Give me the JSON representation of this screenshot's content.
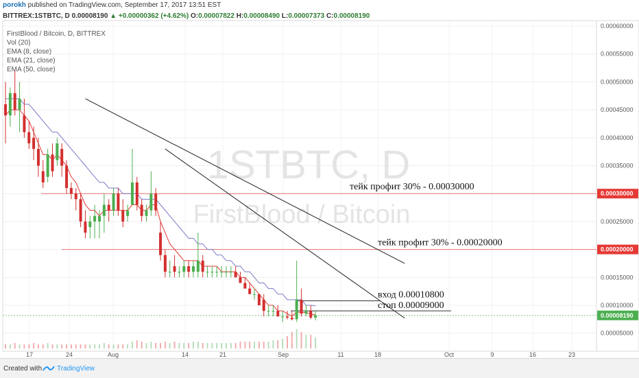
{
  "header": {
    "author": "porokh",
    "published_text": "published on TradingView.com, September 17, 2017 13:51 EST",
    "symbol": "BITTREX:1STBTC, D",
    "last": "0.00008190",
    "change": "▲ +0.00000362 (+4.62%)",
    "o_label": "O:",
    "o_value": "0.00007822",
    "h_label": "H:",
    "h_value": "0.00008490",
    "l_label": "L:",
    "l_value": "0.00007373",
    "c_label": "C:",
    "c_value": "0.00008190"
  },
  "legend": [
    "FirstBlood / Bitcoin, D, BITTREX",
    "Vol (20)",
    "EMA (8, close)",
    "EMA (21, close)",
    "EMA (50, close)"
  ],
  "watermark": {
    "line1": "1STBTC, D",
    "line2": "FirstBlood / Bitcoin"
  },
  "footer": {
    "created_with": "Created with",
    "brand": "TradingView"
  },
  "colors": {
    "up": "#4caf50",
    "down": "#d32f2f",
    "ema8": "#e53935",
    "ema21": "#7a7ac9",
    "ema50": "#8888aa",
    "hline": "#e57373",
    "priceline": "#81c784",
    "label_bg": "#e53935",
    "price_label_bg": "#4caf50"
  },
  "chart_data": {
    "type": "candlestick",
    "x_tick_labels": [
      "17",
      "24",
      "Aug",
      "14",
      "21",
      "Sep",
      "11",
      "18",
      "Oct",
      "9",
      "16",
      "23"
    ],
    "y_tick_labels": [
      "0.00060000",
      "0.00055000",
      "0.00050000",
      "0.00045000",
      "0.00040000",
      "0.00035000",
      "0.00030000",
      "0.00025000",
      "0.00020000",
      "0.00015000",
      "0.00010000",
      "0.00005000"
    ],
    "ylim": [
      3e-05,
      0.0006
    ],
    "current_price": "0.00008190",
    "candles": [
      {
        "o": 0.00046,
        "h": 0.0005,
        "l": 0.00039,
        "c": 0.00044
      },
      {
        "o": 0.00044,
        "h": 0.00049,
        "l": 0.00042,
        "c": 0.00048
      },
      {
        "o": 0.00048,
        "h": 0.00052,
        "l": 0.00044,
        "c": 0.00045
      },
      {
        "o": 0.00045,
        "h": 0.0005,
        "l": 0.00041,
        "c": 0.00047
      },
      {
        "o": 0.00044,
        "h": 0.00047,
        "l": 0.0004,
        "c": 0.00041
      },
      {
        "o": 0.00041,
        "h": 0.00043,
        "l": 0.00038,
        "c": 0.00039
      },
      {
        "o": 0.0004,
        "h": 0.00042,
        "l": 0.00036,
        "c": 0.00038
      },
      {
        "o": 0.00038,
        "h": 0.0004,
        "l": 0.00033,
        "c": 0.00035
      },
      {
        "o": 0.00034,
        "h": 0.00036,
        "l": 0.00031,
        "c": 0.00032
      },
      {
        "o": 0.00033,
        "h": 0.00038,
        "l": 0.00032,
        "c": 0.00037
      },
      {
        "o": 0.00037,
        "h": 0.00039,
        "l": 0.00033,
        "c": 0.00034
      },
      {
        "o": 0.00036,
        "h": 0.0004,
        "l": 0.00035,
        "c": 0.00039
      },
      {
        "o": 0.00038,
        "h": 0.00039,
        "l": 0.00033,
        "c": 0.00035
      },
      {
        "o": 0.00035,
        "h": 0.00036,
        "l": 0.0003,
        "c": 0.00031
      },
      {
        "o": 0.00031,
        "h": 0.00032,
        "l": 0.00029,
        "c": 0.0003
      },
      {
        "o": 0.0003,
        "h": 0.00031,
        "l": 0.00027,
        "c": 0.00029
      },
      {
        "o": 0.00029,
        "h": 0.0003,
        "l": 0.00024,
        "c": 0.00025
      },
      {
        "o": 0.00025,
        "h": 0.00027,
        "l": 0.00022,
        "c": 0.00023
      },
      {
        "o": 0.00024,
        "h": 0.00026,
        "l": 0.00022,
        "c": 0.00025
      },
      {
        "o": 0.00025,
        "h": 0.00028,
        "l": 0.00022,
        "c": 0.00026
      },
      {
        "o": 0.00025,
        "h": 0.00027,
        "l": 0.00022,
        "c": 0.00026
      },
      {
        "o": 0.00026,
        "h": 0.0003,
        "l": 0.00023,
        "c": 0.00028
      },
      {
        "o": 0.00028,
        "h": 0.00029,
        "l": 0.00025,
        "c": 0.00027
      },
      {
        "o": 0.00027,
        "h": 0.00031,
        "l": 0.00026,
        "c": 0.0003
      },
      {
        "o": 0.0003,
        "h": 0.00031,
        "l": 0.00026,
        "c": 0.00027
      },
      {
        "o": 0.00027,
        "h": 0.00029,
        "l": 0.00024,
        "c": 0.00025
      },
      {
        "o": 0.00026,
        "h": 0.00028,
        "l": 0.00025,
        "c": 0.00027
      },
      {
        "o": 0.00028,
        "h": 0.00038,
        "l": 0.00028,
        "c": 0.00032
      },
      {
        "o": 0.00032,
        "h": 0.00033,
        "l": 0.00027,
        "c": 0.00028
      },
      {
        "o": 0.00028,
        "h": 0.00029,
        "l": 0.00025,
        "c": 0.00026
      },
      {
        "o": 0.00026,
        "h": 0.00028,
        "l": 0.00025,
        "c": 0.00027
      },
      {
        "o": 0.00027,
        "h": 0.00034,
        "l": 0.00026,
        "c": 0.0003
      },
      {
        "o": 0.0003,
        "h": 0.00031,
        "l": 0.00026,
        "c": 0.00027
      },
      {
        "o": 0.00023,
        "h": 0.00025,
        "l": 0.00018,
        "c": 0.00019
      },
      {
        "o": 0.00019,
        "h": 0.0002,
        "l": 0.00015,
        "c": 0.00016
      },
      {
        "o": 0.00016,
        "h": 0.00018,
        "l": 0.00015,
        "c": 0.00016
      },
      {
        "o": 0.00017,
        "h": 0.00019,
        "l": 0.00015,
        "c": 0.00016
      },
      {
        "o": 0.00016,
        "h": 0.00017,
        "l": 0.00015,
        "c": 0.00016
      },
      {
        "o": 0.00016,
        "h": 0.00018,
        "l": 0.00015,
        "c": 0.00017
      },
      {
        "o": 0.00017,
        "h": 0.00018,
        "l": 0.00015,
        "c": 0.00016
      },
      {
        "o": 0.00016,
        "h": 0.00018,
        "l": 0.00015,
        "c": 0.00017
      },
      {
        "o": 0.00016,
        "h": 0.00023,
        "l": 0.00015,
        "c": 0.00018
      },
      {
        "o": 0.00018,
        "h": 0.00019,
        "l": 0.00015,
        "c": 0.00016
      },
      {
        "o": 0.00016,
        "h": 0.00017,
        "l": 0.00015,
        "c": 0.00016
      },
      {
        "o": 0.00016,
        "h": 0.00017,
        "l": 0.00015,
        "c": 0.00016
      },
      {
        "o": 0.00016,
        "h": 0.00017,
        "l": 0.00015,
        "c": 0.00016
      },
      {
        "o": 0.00016,
        "h": 0.00017,
        "l": 0.00015,
        "c": 0.00016
      },
      {
        "o": 0.00016,
        "h": 0.00017,
        "l": 0.00015,
        "c": 0.00016
      },
      {
        "o": 0.00016,
        "h": 0.00017,
        "l": 0.00015,
        "c": 0.00016
      },
      {
        "o": 0.00016,
        "h": 0.00017,
        "l": 0.00015,
        "c": 0.00015
      },
      {
        "o": 0.00015,
        "h": 0.00016,
        "l": 0.00014,
        "c": 0.00014
      },
      {
        "o": 0.00014,
        "h": 0.00015,
        "l": 0.00013,
        "c": 0.00013
      },
      {
        "o": 0.00013,
        "h": 0.00014,
        "l": 0.00012,
        "c": 0.00012
      },
      {
        "o": 0.00012,
        "h": 0.00013,
        "l": 0.00011,
        "c": 0.00012
      },
      {
        "o": 0.00012,
        "h": 0.00012,
        "l": 0.0001,
        "c": 0.0001
      },
      {
        "o": 0.00011,
        "h": 0.00012,
        "l": 8e-05,
        "c": 9e-05
      },
      {
        "o": 9e-05,
        "h": 0.0001,
        "l": 8e-05,
        "c": 9e-05
      },
      {
        "o": 9e-05,
        "h": 0.0001,
        "l": 8e-05,
        "c": 9e-05
      },
      {
        "o": 9e-05,
        "h": 0.0001,
        "l": 8e-05,
        "c": 8e-05
      },
      {
        "o": 8e-05,
        "h": 9e-05,
        "l": 7e-05,
        "c": 8e-05
      },
      {
        "o": 8e-05,
        "h": 9e-05,
        "l": 7.5e-05,
        "c": 7.8e-05
      },
      {
        "o": 7.8e-05,
        "h": 9e-05,
        "l": 7.3e-05,
        "c": 7.5e-05
      },
      {
        "o": 7.5e-05,
        "h": 0.00018,
        "l": 7e-05,
        "c": 0.00011
      },
      {
        "o": 0.00011,
        "h": 0.00013,
        "l": 8e-05,
        "c": 8.5e-05
      },
      {
        "o": 8.5e-05,
        "h": 0.0001,
        "l": 8e-05,
        "c": 9e-05
      },
      {
        "o": 9e-05,
        "h": 0.0001,
        "l": 7.5e-05,
        "c": 7.8e-05
      },
      {
        "o": 7.8e-05,
        "h": 9e-05,
        "l": 7.3e-05,
        "c": 8.2e-05
      }
    ],
    "volume_scale_note": "",
    "volumes": [
      3,
      3,
      4,
      3,
      3,
      3,
      4,
      3,
      3,
      4,
      3,
      3,
      3,
      3,
      3,
      3,
      3,
      3,
      3,
      3,
      3,
      4,
      3,
      3,
      3,
      3,
      3,
      5,
      6,
      5,
      4,
      5,
      4,
      4,
      5,
      4,
      5,
      4,
      4,
      4,
      5,
      5,
      4,
      4,
      4,
      4,
      4,
      4,
      4,
      4,
      5,
      5,
      5,
      5,
      5,
      5,
      5,
      6,
      6,
      7,
      9,
      12,
      14,
      12,
      10,
      10,
      8
    ],
    "ema8": [
      0.00044,
      0.00045,
      0.00045,
      0.00045,
      0.00044,
      0.00043,
      0.00041,
      0.00039,
      0.00037,
      0.00037,
      0.00036,
      0.00037,
      0.00036,
      0.00035,
      0.00033,
      0.00032,
      0.0003,
      0.00028,
      0.00027,
      0.00027,
      0.00026,
      0.00027,
      0.00027,
      0.00027,
      0.00027,
      0.00027,
      0.00027,
      0.00028,
      0.00028,
      0.00027,
      0.00027,
      0.00028,
      0.00028,
      0.00025,
      0.00023,
      0.00021,
      0.0002,
      0.00019,
      0.00018,
      0.00018,
      0.00018,
      0.00018,
      0.00017,
      0.00017,
      0.00017,
      0.00017,
      0.00016,
      0.00016,
      0.00016,
      0.00016,
      0.00015,
      0.00015,
      0.00014,
      0.00013,
      0.00012,
      0.00011,
      0.0001,
      0.0001,
      9e-05,
      9e-05,
      8.5e-05,
      8e-05,
      8.8e-05,
      8.7e-05,
      8.7e-05,
      8.4e-05,
      8.3e-05
    ],
    "ema21": [
      0.00047,
      0.00047,
      0.00047,
      0.00047,
      0.00046,
      0.00046,
      0.00045,
      0.00044,
      0.00043,
      0.00042,
      0.00041,
      0.00041,
      0.0004,
      0.00039,
      0.00038,
      0.00037,
      0.00036,
      0.00035,
      0.00034,
      0.00033,
      0.00032,
      0.00032,
      0.00031,
      0.00031,
      0.00031,
      0.0003,
      0.0003,
      0.0003,
      0.0003,
      0.00029,
      0.00029,
      0.00029,
      0.00029,
      0.00028,
      0.00027,
      0.00026,
      0.00025,
      0.00024,
      0.00023,
      0.00022,
      0.00022,
      0.00021,
      0.00021,
      0.0002,
      0.0002,
      0.00019,
      0.00019,
      0.00018,
      0.00018,
      0.00017,
      0.00017,
      0.00016,
      0.00016,
      0.00015,
      0.00014,
      0.00014,
      0.00013,
      0.00013,
      0.00012,
      0.00012,
      0.00011,
      0.00011,
      0.00011,
      0.00011,
      0.0001,
      0.0001,
      9.9e-05
    ],
    "trendlines": [
      {
        "x1": 17,
        "y1": 0.00047,
        "x2": 85,
        "y2": 0.000175
      },
      {
        "x1": 34,
        "y1": 0.00038,
        "x2": 85,
        "y2": 7.7e-05
      }
    ],
    "annotations": [
      {
        "text": "тейк профит 30% - 0.00030000",
        "price": 0.0003
      },
      {
        "text": "тейк профит 30% - 0.00020000",
        "price": 0.0002
      },
      {
        "text": "вход 0.00010800",
        "price": 0.000108
      },
      {
        "text": "стоп 0.00009000",
        "price": 9e-05
      }
    ],
    "right_labels": [
      "0.00030000",
      "0.00020000",
      "0.00008190"
    ]
  }
}
